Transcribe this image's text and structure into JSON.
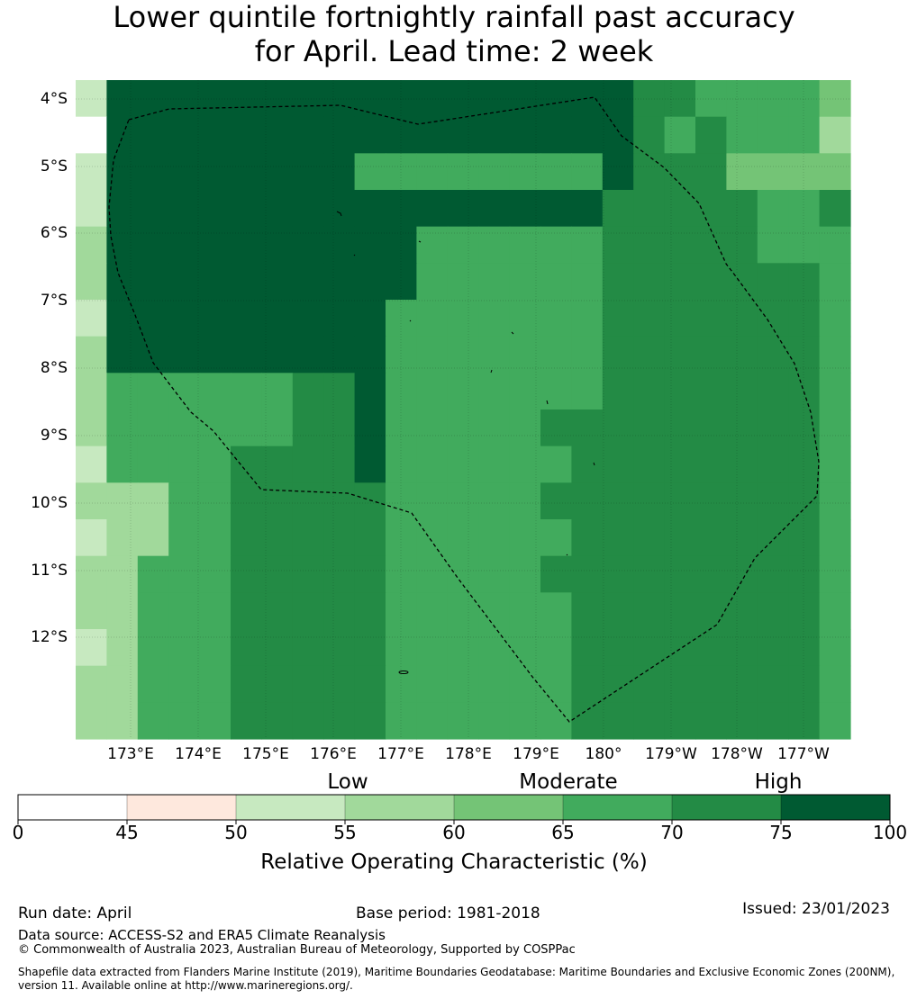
{
  "title": {
    "line1": "Lower quintile fortnightly rainfall past accuracy",
    "line2": "for April. Lead time: 2 week"
  },
  "map": {
    "lat_labels": [
      "4°S",
      "5°S",
      "6°S",
      "7°S",
      "8°S",
      "9°S",
      "10°S",
      "11°S",
      "12°S"
    ],
    "lon_labels": [
      "173°E",
      "174°E",
      "175°E",
      "176°E",
      "177°E",
      "178°E",
      "179°E",
      "180°",
      "179°W",
      "178°W",
      "177°W"
    ],
    "colors": [
      "#ffffff",
      "#fee8dd",
      "#c7e9c0",
      "#a1d99b",
      "#74c476",
      "#41ab5d",
      "#238b45",
      "#005a32"
    ],
    "grid_values": [
      "2777777777777777776655554",
      "0777777777777777776565553",
      "2777777775555555576664444",
      "2777777777777777766666556",
      "3777777777755555566666555",
      "3777777777755555566666665",
      "2777777777555555566666665",
      "3777777777555555566666665",
      "3555555667555555566666665",
      "3555555667555556666666665",
      "2555566667555555666666665",
      "3335566666555556666666665",
      "2335566666555555666666665",
      "3355566666555556666666665",
      "3355566666555555666666665",
      "2355566666555555666666665",
      "3355566666555555666666665",
      "3355566666555555666666665"
    ],
    "eez_boundary": "dashed"
  },
  "colorbar": {
    "categories": [
      "Low",
      "Moderate",
      "High"
    ],
    "ticks": [
      "0",
      "45",
      "50",
      "55",
      "60",
      "65",
      "70",
      "75",
      "100"
    ],
    "label": "Relative Operating Characteristic (%)"
  },
  "footer": {
    "run_date": "Run date: April",
    "base_period": "Base period: 1981-2018",
    "issued": "Issued: 23/01/2023",
    "data_source": "Data source: ACCESS-S2 and ERA5 Climate Reanalysis",
    "copyright": "© Commonwealth of Australia 2023, Australian Bureau of Meteorology, Supported by COSPPac",
    "shapefile1": "Shapefile data extracted from Flanders Marine Institute (2019), Maritime Boundaries Geodatabase: Maritime Boundaries and Exclusive Economic Zones (200NM),",
    "shapefile2": "version 11. Available online at http://www.marineregions.org/."
  }
}
